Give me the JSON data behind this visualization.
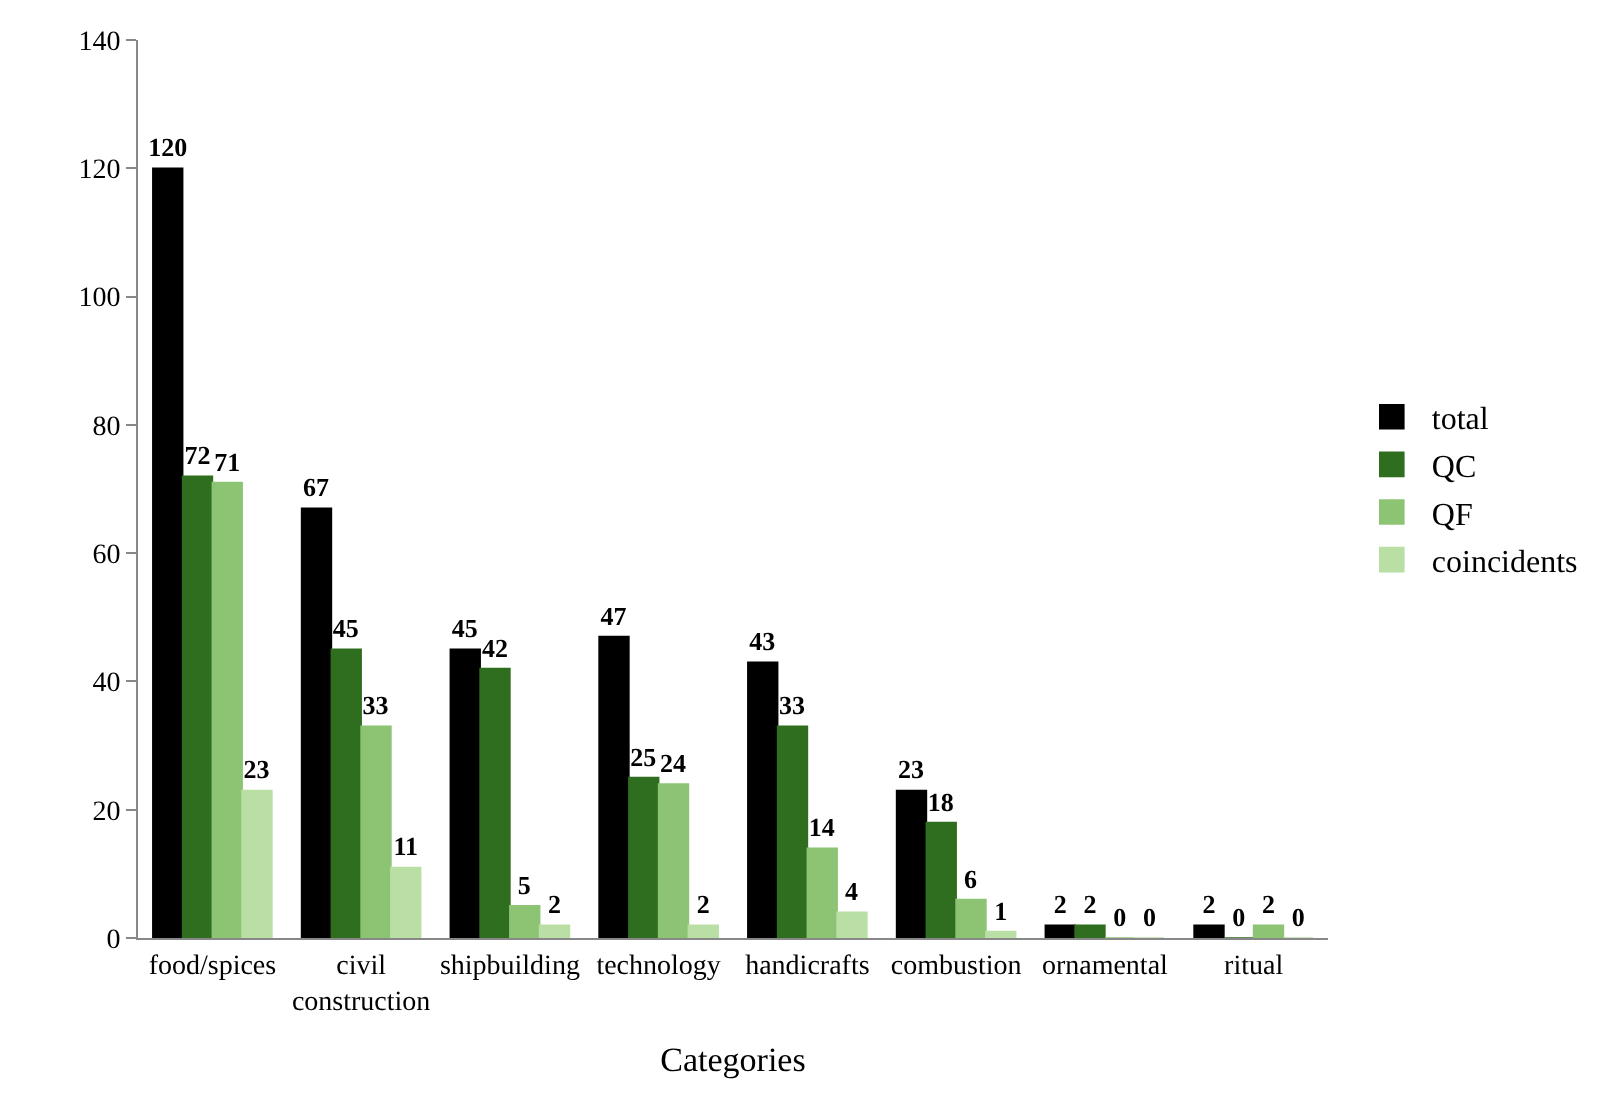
{
  "chart_data": {
    "type": "bar",
    "xlabel": "Categories",
    "categories": [
      "food/spices",
      "civil construction",
      "shipbuilding",
      "technology",
      "handicrafts",
      "combustion",
      "ornamental",
      "ritual"
    ],
    "series": [
      {
        "name": "total",
        "color": "#000000",
        "values": [
          120,
          67,
          45,
          47,
          43,
          23,
          2,
          2
        ]
      },
      {
        "name": "QC",
        "color": "#2f6e1e",
        "values": [
          72,
          45,
          42,
          25,
          33,
          18,
          2,
          0
        ]
      },
      {
        "name": "QF",
        "color": "#8cc474",
        "values": [
          71,
          33,
          5,
          24,
          14,
          6,
          0,
          2
        ]
      },
      {
        "name": "coincidents",
        "color": "#b9dfa5",
        "values": [
          23,
          11,
          2,
          2,
          4,
          1,
          0,
          0
        ]
      }
    ],
    "ylim": [
      0,
      140
    ],
    "yticks": [
      0,
      20,
      40,
      60,
      80,
      100,
      120,
      140
    ],
    "legend": "right",
    "data_labels": true
  }
}
